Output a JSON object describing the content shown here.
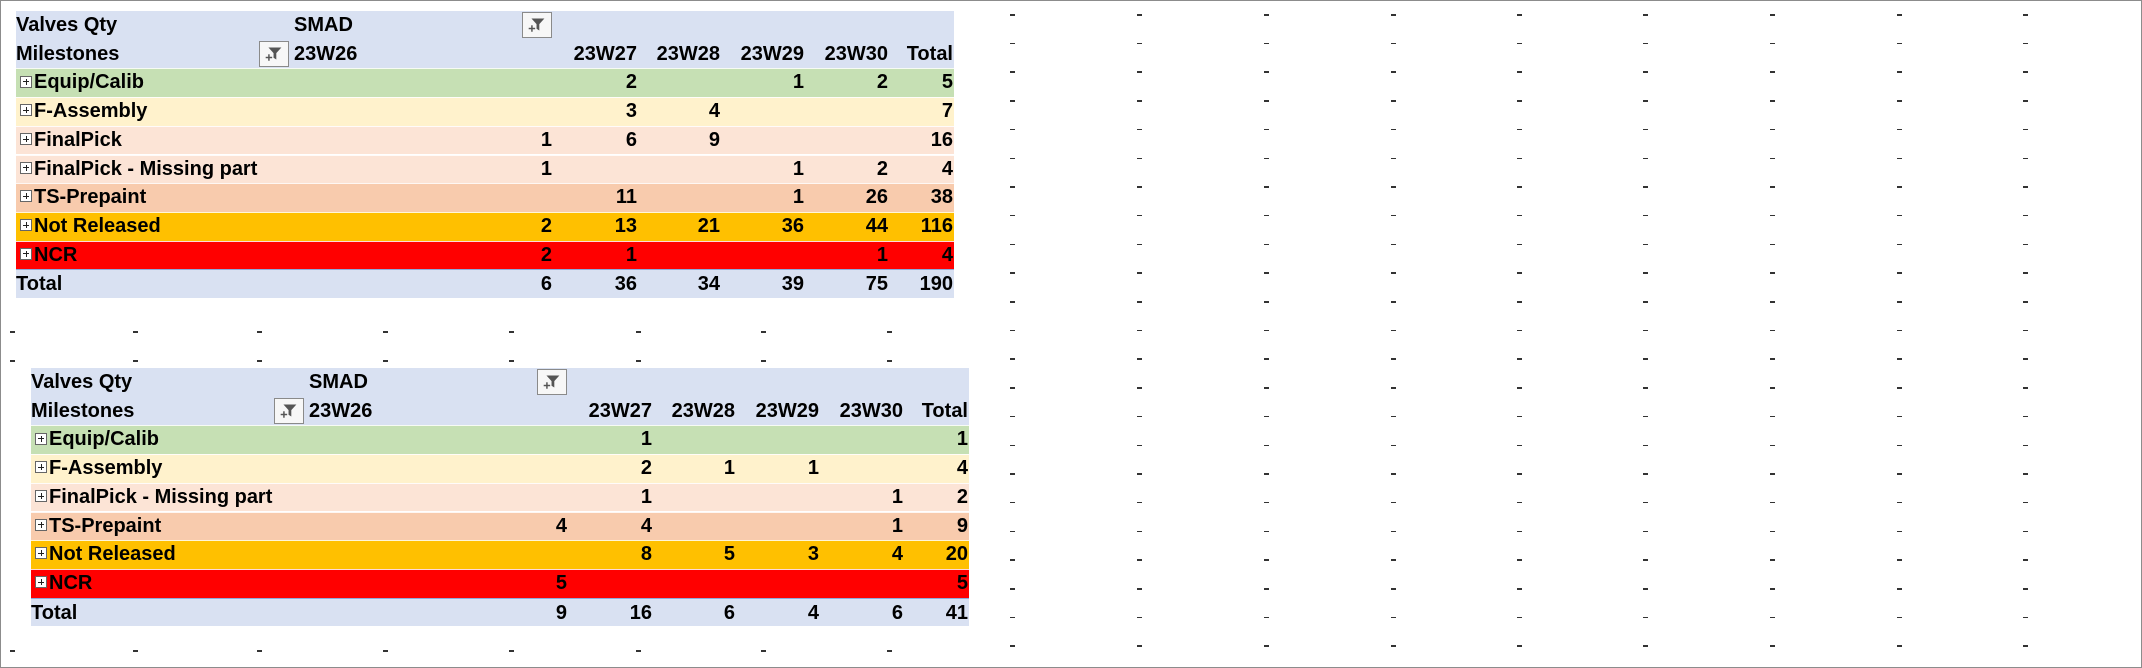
{
  "colors": {
    "header_bg": "#d9e1f2",
    "total_bg": "#d9e1f2",
    "Equip/Calib": "#c6e0b4",
    "F-Assembly": "#fff2cc",
    "FinalPick": "#fce4d6",
    "FinalPick - Missing part": "#fce4d6",
    "TS-Prepaint": "#f8cbad",
    "Not Released": "#ffc000",
    "NCR": "#ff0000"
  },
  "pivots": [
    {
      "value_label": "Valves Qty",
      "column_field": "SMAD",
      "row_field": "Milestones",
      "first_column": "23W26",
      "columns": [
        "23W27",
        "23W28",
        "23W29",
        "23W30",
        "Total"
      ],
      "rows": [
        {
          "label": "Equip/Calib",
          "values": [
            "",
            "2",
            "",
            "1",
            "2",
            "5"
          ]
        },
        {
          "label": "F-Assembly",
          "values": [
            "",
            "3",
            "4",
            "",
            "",
            "7"
          ]
        },
        {
          "label": "FinalPick",
          "values": [
            "1",
            "6",
            "9",
            "",
            "",
            "16"
          ]
        },
        {
          "label": "FinalPick - Missing part",
          "values": [
            "1",
            "",
            "",
            "1",
            "2",
            "4"
          ]
        },
        {
          "label": "TS-Prepaint",
          "values": [
            "",
            "11",
            "",
            "1",
            "26",
            "38"
          ]
        },
        {
          "label": "Not Released",
          "values": [
            "2",
            "13",
            "21",
            "36",
            "44",
            "116"
          ]
        },
        {
          "label": "NCR",
          "values": [
            "2",
            "1",
            "",
            "",
            "1",
            "4"
          ]
        }
      ],
      "total": {
        "label": "Total",
        "values": [
          "6",
          "36",
          "34",
          "39",
          "75",
          "190"
        ]
      }
    },
    {
      "value_label": "Valves Qty",
      "column_field": "SMAD",
      "row_field": "Milestones",
      "first_column": "23W26",
      "columns": [
        "23W27",
        "23W28",
        "23W29",
        "23W30",
        "Total"
      ],
      "rows": [
        {
          "label": "Equip/Calib",
          "values": [
            "",
            "1",
            "",
            "",
            "",
            "1"
          ]
        },
        {
          "label": "F-Assembly",
          "values": [
            "",
            "2",
            "1",
            "1",
            "",
            "4"
          ]
        },
        {
          "label": "FinalPick - Missing part",
          "values": [
            "",
            "1",
            "",
            "",
            "1",
            "2"
          ]
        },
        {
          "label": "TS-Prepaint",
          "values": [
            "4",
            "4",
            "",
            "",
            "1",
            "9"
          ]
        },
        {
          "label": "Not Released",
          "values": [
            "",
            "8",
            "5",
            "3",
            "4",
            "20"
          ]
        },
        {
          "label": "NCR",
          "values": [
            "5",
            "",
            "",
            "",
            "",
            "5"
          ]
        }
      ],
      "total": {
        "label": "Total",
        "values": [
          "9",
          "16",
          "6",
          "4",
          "6",
          "41"
        ]
      }
    }
  ]
}
